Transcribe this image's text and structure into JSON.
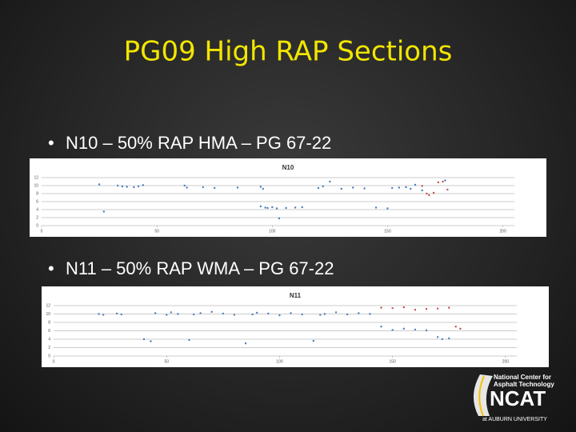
{
  "slide": {
    "title": "PG09 High RAP Sections",
    "bullets": [
      "N10 – 50% RAP HMA – PG 67-22",
      "N11 – 50% RAP WMA – PG 67-22"
    ],
    "logo": {
      "line1": "National Center for",
      "line2": "Asphalt Technology",
      "name": "NCAT",
      "line3": "at AUBURN UNIVERSITY"
    }
  },
  "chart_data": [
    {
      "type": "scatter",
      "title": "N10",
      "xlim": [
        0,
        205
      ],
      "ylim": [
        0,
        12
      ],
      "xticks": [
        0,
        50,
        100,
        150,
        200
      ],
      "yticks": [
        0,
        2,
        4,
        6,
        8,
        10,
        12
      ],
      "grid": true,
      "series": [
        {
          "color": "#4a7ebb",
          "x": [
            25,
            27,
            33,
            35,
            37,
            40,
            42,
            44,
            62,
            63,
            70,
            75,
            85,
            95,
            96,
            95,
            97,
            98,
            100,
            102,
            103,
            106,
            110,
            113,
            120,
            122,
            125,
            130,
            135,
            140,
            145,
            150,
            152,
            155,
            158,
            160,
            162,
            165,
            175
          ],
          "values": [
            10.3,
            3.5,
            10,
            9.8,
            9.7,
            9.6,
            9.8,
            10.1,
            10,
            9.5,
            9.6,
            9.4,
            9.5,
            9.7,
            9.2,
            4.8,
            4.5,
            4.4,
            4.6,
            4.3,
            1.8,
            4.4,
            4.5,
            4.6,
            9.4,
            9.8,
            11,
            9.2,
            9.5,
            9.3,
            4.5,
            4.3,
            9.4,
            9.5,
            9.6,
            9.2,
            10.2,
            8.8,
            11.3
          ]
        },
        {
          "color": "#c0504d",
          "x": [
            165,
            167,
            168,
            170,
            172,
            174,
            176
          ],
          "values": [
            9.9,
            8,
            7.6,
            8.2,
            10.8,
            11,
            9
          ]
        }
      ]
    },
    {
      "type": "scatter",
      "title": "N11",
      "xlim": [
        0,
        205
      ],
      "ylim": [
        0,
        12
      ],
      "xticks": [
        0,
        50,
        100,
        150,
        200
      ],
      "yticks": [
        0,
        2,
        4,
        6,
        8,
        10,
        12
      ],
      "grid": true,
      "series": [
        {
          "color": "#4a7ebb",
          "x": [
            20,
            22,
            28,
            30,
            40,
            43,
            45,
            50,
            52,
            55,
            60,
            62,
            65,
            70,
            75,
            80,
            85,
            88,
            90,
            95,
            100,
            105,
            110,
            115,
            118,
            120,
            125,
            130,
            135,
            140,
            145,
            150,
            155,
            160,
            165,
            170,
            172,
            175
          ],
          "values": [
            10,
            9.8,
            10.1,
            9.9,
            4,
            3.5,
            10.2,
            9.8,
            10.4,
            10,
            3.8,
            9.9,
            10.2,
            10.5,
            10.1,
            9.8,
            3,
            9.9,
            10.3,
            10.1,
            9.7,
            10.2,
            9.9,
            3.6,
            9.8,
            10,
            10.4,
            9.9,
            10.2,
            10,
            7,
            6.2,
            6.5,
            6.3,
            6.1,
            4.5,
            4,
            4.2
          ]
        },
        {
          "color": "#c0504d",
          "x": [
            145,
            150,
            155,
            160,
            165,
            170,
            175,
            178,
            180
          ],
          "values": [
            11.5,
            11.4,
            11.6,
            11,
            11.2,
            11.3,
            11.5,
            7,
            6.5
          ]
        }
      ]
    }
  ]
}
